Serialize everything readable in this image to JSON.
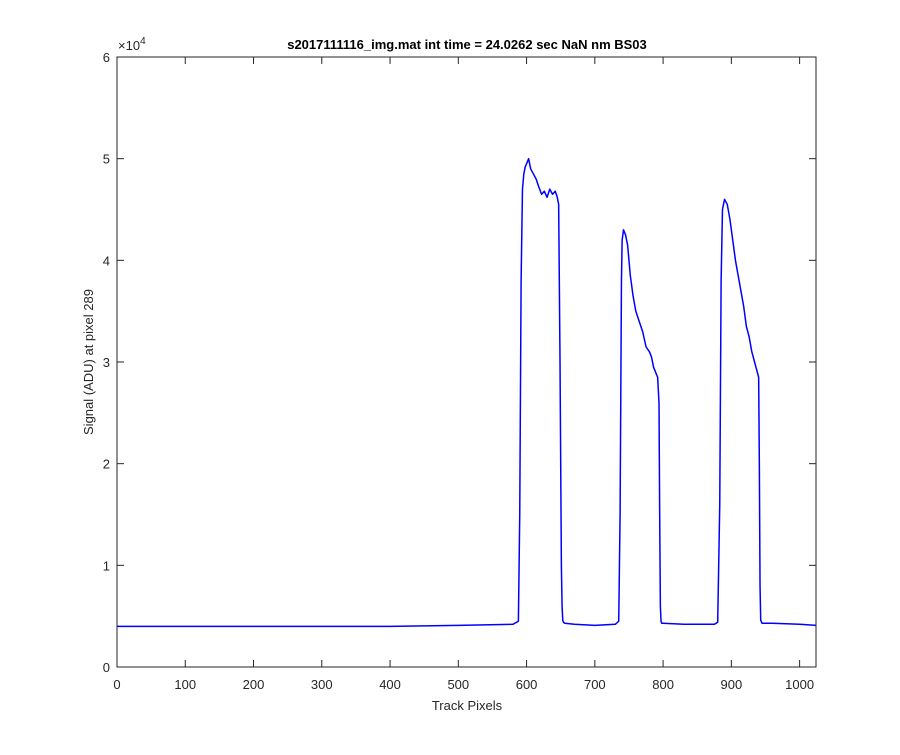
{
  "chart_data": {
    "type": "line",
    "title": "s2017111116_img.mat int time = 24.0262 sec  NaN nm BS03",
    "xlabel": "Track Pixels",
    "ylabel": "Signal (ADU) at pixel 289",
    "y_exponent_base": "×10",
    "y_exponent_power": "4",
    "xlim": [
      0,
      1024
    ],
    "ylim": [
      0,
      6
    ],
    "y_scale_multiplier": 10000,
    "x_ticks": [
      0,
      100,
      200,
      300,
      400,
      500,
      600,
      700,
      800,
      900,
      1000
    ],
    "x_tick_labels": [
      "0",
      "100",
      "200",
      "300",
      "400",
      "500",
      "600",
      "700",
      "800",
      "900",
      "1000"
    ],
    "y_ticks": [
      0,
      1,
      2,
      3,
      4,
      5,
      6
    ],
    "y_tick_labels": [
      "0",
      "1",
      "2",
      "3",
      "4",
      "5",
      "6"
    ],
    "grid": false,
    "line_color": "#0000ff",
    "series": [
      {
        "x": [
          0,
          100,
          200,
          300,
          400,
          500,
          580,
          588,
          590,
          592,
          594,
          596,
          598,
          600,
          603,
          606,
          610,
          614,
          618,
          622,
          626,
          630,
          634,
          638,
          642,
          645,
          647,
          649,
          651,
          652,
          653,
          654,
          656,
          670,
          700,
          730,
          735,
          737,
          739,
          740,
          742,
          745,
          748,
          752,
          756,
          760,
          765,
          770,
          775,
          780,
          783,
          786,
          789,
          792,
          794,
          795,
          796,
          797,
          798,
          800,
          830,
          875,
          880,
          883,
          885,
          887,
          890,
          894,
          898,
          902,
          906,
          910,
          914,
          918,
          922,
          926,
          930,
          934,
          936,
          938,
          940,
          941,
          942,
          943,
          945,
          960,
          1000,
          1024
        ],
        "y": [
          0.4,
          0.4,
          0.4,
          0.4,
          0.4,
          0.41,
          0.42,
          0.45,
          1.5,
          3.8,
          4.7,
          4.85,
          4.92,
          4.95,
          5.0,
          4.9,
          4.85,
          4.8,
          4.72,
          4.65,
          4.68,
          4.62,
          4.7,
          4.65,
          4.68,
          4.62,
          4.55,
          3.0,
          1.0,
          0.6,
          0.46,
          0.44,
          0.43,
          0.42,
          0.41,
          0.42,
          0.45,
          1.5,
          3.8,
          4.2,
          4.3,
          4.25,
          4.15,
          3.85,
          3.65,
          3.5,
          3.4,
          3.3,
          3.15,
          3.1,
          3.05,
          2.95,
          2.9,
          2.85,
          2.6,
          1.5,
          0.6,
          0.45,
          0.43,
          0.43,
          0.42,
          0.42,
          0.44,
          1.6,
          3.8,
          4.5,
          4.6,
          4.55,
          4.4,
          4.2,
          4.0,
          3.85,
          3.7,
          3.55,
          3.35,
          3.25,
          3.1,
          3.0,
          2.95,
          2.9,
          2.85,
          2.0,
          0.8,
          0.46,
          0.43,
          0.43,
          0.42,
          0.41
        ]
      }
    ]
  }
}
